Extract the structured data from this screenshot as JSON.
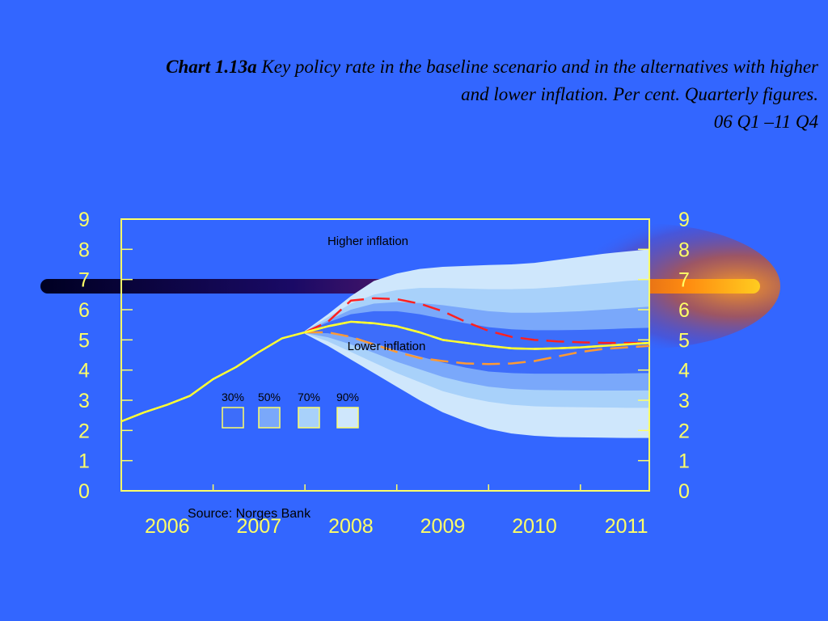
{
  "title": {
    "label": "Chart 1.13a",
    "text_line1": "Key policy rate in the baseline scenario and in the alternatives with higher",
    "text_line2": "and lower inflation. Per cent. Quarterly figures.",
    "text_line3": "06 Q1 –11 Q4"
  },
  "annotations": {
    "higher": "Higher inflation",
    "lower": "Lower inflation",
    "source": "Source: Norges Bank"
  },
  "legend": [
    {
      "label": "30%",
      "color": "#3d6dfa"
    },
    {
      "label": "50%",
      "color": "#7aa8fa"
    },
    {
      "label": "70%",
      "color": "#a8d1fa"
    },
    {
      "label": "90%",
      "color": "#cfe7fc"
    }
  ],
  "colors": {
    "background": "#3366ff",
    "axis": "#ffff66",
    "baseline": "#ffff33",
    "higher": "#ff2020",
    "lower": "#ff9933"
  },
  "chart_data": {
    "type": "line",
    "x_ticks": [
      "2006",
      "2007",
      "2008",
      "2009",
      "2010",
      "2011"
    ],
    "ylim": [
      0,
      9
    ],
    "y_ticks": [
      0,
      1,
      2,
      3,
      4,
      5,
      6,
      7,
      8,
      9
    ],
    "series": [
      {
        "name": "Baseline",
        "x": [
          2006.0,
          2006.25,
          2006.5,
          2006.75,
          2007.0,
          2007.25,
          2007.5,
          2007.75,
          2008.0,
          2008.25,
          2008.5,
          2008.75,
          2009.0,
          2009.25,
          2009.5,
          2009.75,
          2010.0,
          2010.25,
          2010.5,
          2010.75,
          2011.0,
          2011.25,
          2011.5,
          2011.75
        ],
        "y": [
          2.3,
          2.6,
          2.85,
          3.15,
          3.7,
          4.1,
          4.6,
          5.05,
          5.25,
          5.45,
          5.6,
          5.55,
          5.45,
          5.25,
          5.0,
          4.9,
          4.8,
          4.72,
          4.7,
          4.72,
          4.75,
          4.8,
          4.85,
          4.9
        ]
      },
      {
        "name": "Higher inflation",
        "x": [
          2008.0,
          2008.25,
          2008.5,
          2008.75,
          2009.0,
          2009.25,
          2009.5,
          2009.75,
          2010.0,
          2010.25,
          2010.5,
          2010.75,
          2011.0,
          2011.25,
          2011.5,
          2011.75
        ],
        "y": [
          5.25,
          5.6,
          6.3,
          6.38,
          6.35,
          6.2,
          5.95,
          5.6,
          5.3,
          5.1,
          5.0,
          4.95,
          4.92,
          4.9,
          4.9,
          4.9
        ]
      },
      {
        "name": "Lower inflation",
        "x": [
          2008.0,
          2008.25,
          2008.5,
          2008.75,
          2009.0,
          2009.25,
          2009.5,
          2009.75,
          2010.0,
          2010.25,
          2010.5,
          2010.75,
          2011.0,
          2011.25,
          2011.5,
          2011.75
        ],
        "y": [
          5.25,
          5.25,
          5.1,
          4.85,
          4.6,
          4.4,
          4.3,
          4.22,
          4.2,
          4.22,
          4.3,
          4.45,
          4.6,
          4.7,
          4.75,
          4.8
        ]
      }
    ],
    "fan_x": [
      2008.0,
      2008.25,
      2008.5,
      2008.75,
      2009.0,
      2009.25,
      2009.5,
      2009.75,
      2010.0,
      2010.25,
      2010.5,
      2010.75,
      2011.0,
      2011.25,
      2011.5,
      2011.75
    ],
    "fan_bands": [
      {
        "level": "90%",
        "upper": [
          5.3,
          5.85,
          6.45,
          6.95,
          7.2,
          7.35,
          7.42,
          7.45,
          7.48,
          7.5,
          7.55,
          7.65,
          7.75,
          7.85,
          7.93,
          8.0
        ],
        "lower": [
          5.2,
          4.8,
          4.35,
          3.9,
          3.45,
          3.0,
          2.6,
          2.3,
          2.05,
          1.9,
          1.82,
          1.78,
          1.77,
          1.76,
          1.75,
          1.75
        ]
      },
      {
        "level": "70%",
        "upper": [
          5.28,
          5.75,
          6.2,
          6.5,
          6.65,
          6.72,
          6.72,
          6.7,
          6.68,
          6.68,
          6.7,
          6.75,
          6.82,
          6.88,
          6.95,
          7.0
        ],
        "lower": [
          5.22,
          4.95,
          4.6,
          4.25,
          3.9,
          3.6,
          3.3,
          3.1,
          2.95,
          2.85,
          2.8,
          2.78,
          2.77,
          2.76,
          2.75,
          2.75
        ]
      },
      {
        "level": "50%",
        "upper": [
          5.27,
          5.65,
          6.0,
          6.2,
          6.25,
          6.22,
          6.15,
          6.05,
          5.95,
          5.9,
          5.9,
          5.92,
          5.95,
          6.0,
          6.05,
          6.1
        ]
      },
      {
        "level": "30%",
        "upper": [
          5.26,
          5.58,
          5.85,
          5.95,
          5.95,
          5.85,
          5.7,
          5.55,
          5.42,
          5.35,
          5.32,
          5.32,
          5.33,
          5.35,
          5.38,
          5.4
        ],
        "lower": [
          5.24,
          5.22,
          5.1,
          4.9,
          4.65,
          4.45,
          4.25,
          4.08,
          3.95,
          3.9,
          3.88,
          3.88,
          3.88,
          3.88,
          3.89,
          3.9
        ]
      }
    ]
  }
}
